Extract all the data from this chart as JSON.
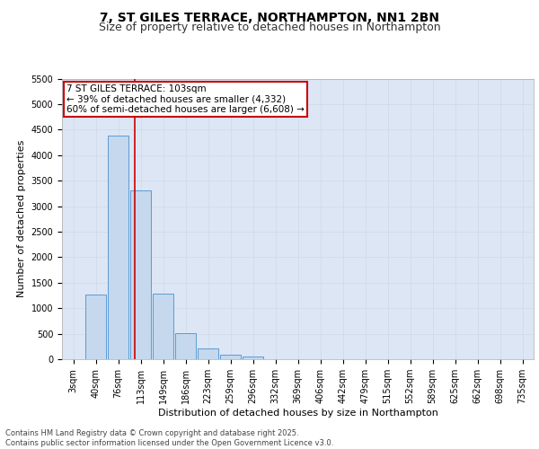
{
  "title1": "7, ST GILES TERRACE, NORTHAMPTON, NN1 2BN",
  "title2": "Size of property relative to detached houses in Northampton",
  "xlabel": "Distribution of detached houses by size in Northampton",
  "ylabel": "Number of detached properties",
  "categories": [
    "3sqm",
    "40sqm",
    "76sqm",
    "113sqm",
    "149sqm",
    "186sqm",
    "223sqm",
    "259sqm",
    "296sqm",
    "332sqm",
    "369sqm",
    "406sqm",
    "442sqm",
    "479sqm",
    "515sqm",
    "552sqm",
    "589sqm",
    "625sqm",
    "662sqm",
    "698sqm",
    "735sqm"
  ],
  "values": [
    0,
    1270,
    4380,
    3310,
    1290,
    505,
    220,
    85,
    55,
    0,
    0,
    0,
    0,
    0,
    0,
    0,
    0,
    0,
    0,
    0,
    0
  ],
  "bar_color": "#c5d8ee",
  "bar_edge_color": "#5b9bd5",
  "grid_color": "#d0d8e8",
  "bg_color": "#dce6f5",
  "vline_color": "#cc0000",
  "annotation_text": "7 ST GILES TERRACE: 103sqm\n← 39% of detached houses are smaller (4,332)\n60% of semi-detached houses are larger (6,608) →",
  "annotation_box_color": "#cc0000",
  "ylim": [
    0,
    5500
  ],
  "yticks": [
    0,
    500,
    1000,
    1500,
    2000,
    2500,
    3000,
    3500,
    4000,
    4500,
    5000,
    5500
  ],
  "footer": "Contains HM Land Registry data © Crown copyright and database right 2025.\nContains public sector information licensed under the Open Government Licence v3.0.",
  "title1_fontsize": 10,
  "title2_fontsize": 9,
  "axis_fontsize": 8,
  "tick_fontsize": 7,
  "footer_fontsize": 6
}
